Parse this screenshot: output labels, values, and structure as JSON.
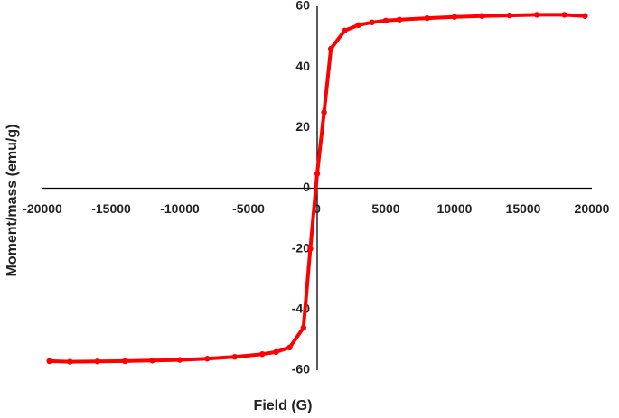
{
  "chart_data": {
    "type": "line",
    "xlabel": "Field (G)",
    "ylabel": "Moment/mass (emu/g)",
    "x": [
      -19500,
      -18000,
      -16000,
      -14000,
      -12000,
      -10000,
      -8000,
      -6000,
      -4000,
      -3000,
      -2000,
      -1000,
      -500,
      0,
      500,
      1000,
      2000,
      3000,
      4000,
      5000,
      6000,
      8000,
      10000,
      12000,
      14000,
      16000,
      18000,
      19500
    ],
    "series": [
      {
        "name": "Moment/mass",
        "color": "#ff0000",
        "values": [
          -57,
          -57.2,
          -57.1,
          -57,
          -56.8,
          -56.6,
          -56.2,
          -55.6,
          -54.7,
          -54,
          -52.5,
          -46,
          -20,
          4.8,
          25,
          46,
          52,
          53.8,
          54.7,
          55.3,
          55.6,
          56.1,
          56.5,
          56.8,
          57,
          57.2,
          57.2,
          56.8
        ]
      }
    ],
    "xlim": [
      -20000,
      20000
    ],
    "xticks": [
      -20000,
      -15000,
      -10000,
      -5000,
      0,
      5000,
      10000,
      15000,
      20000
    ],
    "ylim": [
      -60,
      60
    ],
    "yticks": [
      -60,
      -40,
      -20,
      0,
      20,
      40,
      60
    ],
    "grid": false
  }
}
